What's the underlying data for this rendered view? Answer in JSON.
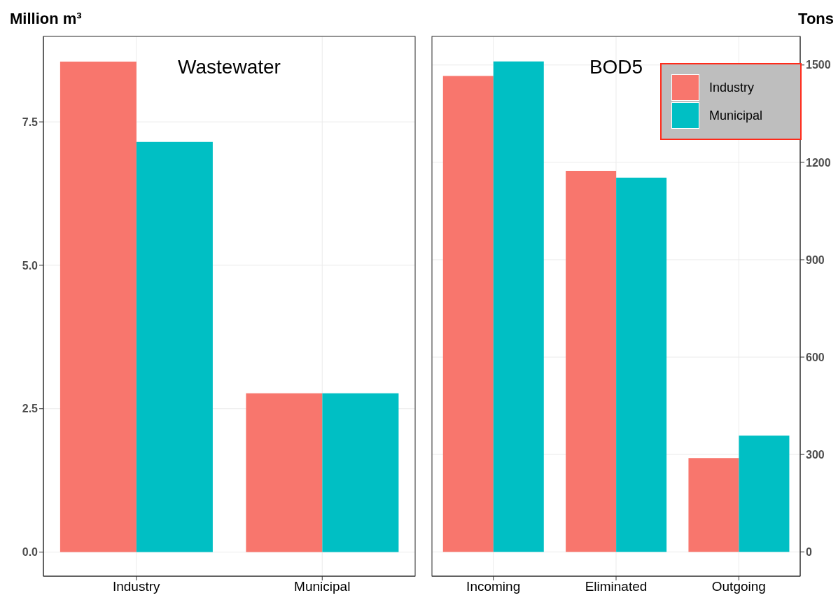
{
  "chart_data": [
    {
      "type": "bar",
      "title": "Wastewater",
      "ylabel": "Million m³",
      "categories": [
        "Industry",
        "Municipal"
      ],
      "series": [
        {
          "color": "#f8766d",
          "values": [
            8.55,
            2.77
          ]
        },
        {
          "color": "#00bfc4",
          "values": [
            7.15,
            2.77
          ]
        }
      ],
      "ylim": [
        -0.42,
        8.99
      ],
      "yticks": [
        {
          "value": 0,
          "label": "0.0"
        },
        {
          "value": 2.5,
          "label": "2.5"
        },
        {
          "value": 5,
          "label": "5.0"
        },
        {
          "value": 7.5,
          "label": "7.5"
        }
      ],
      "grid": true,
      "legend": false
    },
    {
      "type": "bar",
      "title": "BOD5",
      "ylabel": "Tons",
      "categories": [
        "Incoming",
        "Eliminated",
        "Outgoing"
      ],
      "series": [
        {
          "name": "Industry",
          "color": "#f8766d",
          "values": [
            1466,
            1174,
            289
          ]
        },
        {
          "name": "Municipal",
          "color": "#00bfc4",
          "values": [
            1511,
            1153,
            358
          ]
        }
      ],
      "ylim": [
        -75,
        1588
      ],
      "yticks": [
        0,
        300,
        600,
        900,
        1200,
        1500
      ],
      "grid": true,
      "legend": "top right"
    }
  ]
}
